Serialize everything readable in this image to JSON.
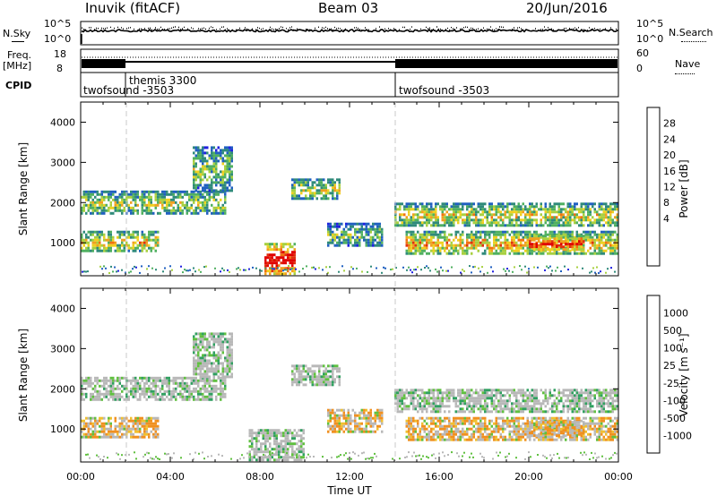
{
  "header": {
    "station": "Inuvik (fitACF)",
    "beam": "Beam 03",
    "date": "20/Jun/2016"
  },
  "noise_panel": {
    "left_label": "N.Sky",
    "right_label": "N.Search",
    "ticks_left": [
      "10^5",
      "10^0"
    ],
    "ticks_right": [
      "10^5",
      "10^0"
    ]
  },
  "freq_panel": {
    "left_label_1": "Freq.",
    "left_label_2": "[MHz]",
    "right_label": "Nave",
    "ticks_left": [
      "18",
      "8"
    ],
    "ticks_right": [
      "60",
      "0"
    ]
  },
  "cpid_panel": {
    "label": "CPID",
    "segments": [
      {
        "name": "twofsound -3503",
        "start_hour": 0,
        "end_hour": 2
      },
      {
        "name": "themis 3300",
        "start_hour": 2,
        "end_hour": 14
      },
      {
        "name": "twofsound -3503",
        "start_hour": 14,
        "end_hour": 24
      }
    ]
  },
  "chart_data": [
    {
      "type": "heatmap",
      "panel": "power",
      "ylabel": "Slant Range [km]",
      "colorbar_label": "Power [dB]",
      "colorbar_ticks": [
        "28",
        "24",
        "20",
        "16",
        "12",
        "8",
        "4"
      ],
      "colorbar_colors": [
        "#2020e0",
        "#2060c0",
        "#2f8a7a",
        "#50b060",
        "#a8d040",
        "#f0d020",
        "#f0a020",
        "#f07010",
        "#e03010",
        "#e00000"
      ],
      "yticks": [
        1000,
        2000,
        3000,
        4000
      ],
      "ylim": [
        180,
        4500
      ],
      "xlim": [
        0,
        24
      ],
      "regions": [
        {
          "x0": 0.0,
          "x1": 6.5,
          "y0": 1700,
          "y1": 2300,
          "level": 0.45
        },
        {
          "x0": 0.0,
          "x1": 3.5,
          "y0": 800,
          "y1": 1300,
          "level": 0.55
        },
        {
          "x0": 5.0,
          "x1": 6.8,
          "y0": 2300,
          "y1": 3400,
          "level": 0.35
        },
        {
          "x0": 8.2,
          "x1": 9.6,
          "y0": 200,
          "y1": 1000,
          "level": 1.0
        },
        {
          "x0": 9.4,
          "x1": 11.6,
          "y0": 2100,
          "y1": 2600,
          "level": 0.45
        },
        {
          "x0": 11.0,
          "x1": 13.5,
          "y0": 900,
          "y1": 1500,
          "level": 0.35
        },
        {
          "x0": 14.0,
          "x1": 24.0,
          "y0": 1400,
          "y1": 2000,
          "level": 0.5
        },
        {
          "x0": 14.5,
          "x1": 24.0,
          "y0": 700,
          "y1": 1300,
          "level": 0.6
        },
        {
          "x0": 20.0,
          "x1": 22.5,
          "y0": 800,
          "y1": 1200,
          "level": 0.85
        }
      ]
    },
    {
      "type": "heatmap",
      "panel": "velocity",
      "ylabel": "Slant Range [km]",
      "xlabel": "Time UT",
      "colorbar_label": "Velocity [m s⁻¹]",
      "colorbar_ticks": [
        "1000",
        "500",
        "100",
        "25",
        "-25",
        "-100",
        "-500",
        "-1000"
      ],
      "colorbar_colors": [
        "#2040c0",
        "#207090",
        "#30a060",
        "#60c040",
        "#b8b8b8",
        "#f0c030",
        "#f09020",
        "#f06010",
        "#e00000"
      ],
      "xticks": [
        "00:00",
        "04:00",
        "08:00",
        "12:00",
        "16:00",
        "20:00",
        "00:00"
      ],
      "yticks": [
        1000,
        2000,
        3000,
        4000
      ],
      "ylim": [
        180,
        4500
      ],
      "xlim": [
        0,
        24
      ],
      "regions": [
        {
          "x0": 0.0,
          "x1": 6.5,
          "y0": 1700,
          "y1": 2300,
          "level": 0.45
        },
        {
          "x0": 0.0,
          "x1": 3.5,
          "y0": 800,
          "y1": 1300,
          "level": 0.7
        },
        {
          "x0": 5.0,
          "x1": 6.8,
          "y0": 2300,
          "y1": 3400,
          "level": 0.45
        },
        {
          "x0": 7.5,
          "x1": 10.0,
          "y0": 200,
          "y1": 1000,
          "level": 0.25
        },
        {
          "x0": 9.4,
          "x1": 11.6,
          "y0": 2100,
          "y1": 2600,
          "level": 0.45
        },
        {
          "x0": 11.0,
          "x1": 13.5,
          "y0": 900,
          "y1": 1500,
          "level": 0.65
        },
        {
          "x0": 14.0,
          "x1": 24.0,
          "y0": 1400,
          "y1": 2000,
          "level": 0.45
        },
        {
          "x0": 14.5,
          "x1": 24.0,
          "y0": 700,
          "y1": 1300,
          "level": 0.7
        },
        {
          "x0": 20.0,
          "x1": 22.5,
          "y0": 800,
          "y1": 1200,
          "level": 0.75
        }
      ]
    }
  ]
}
